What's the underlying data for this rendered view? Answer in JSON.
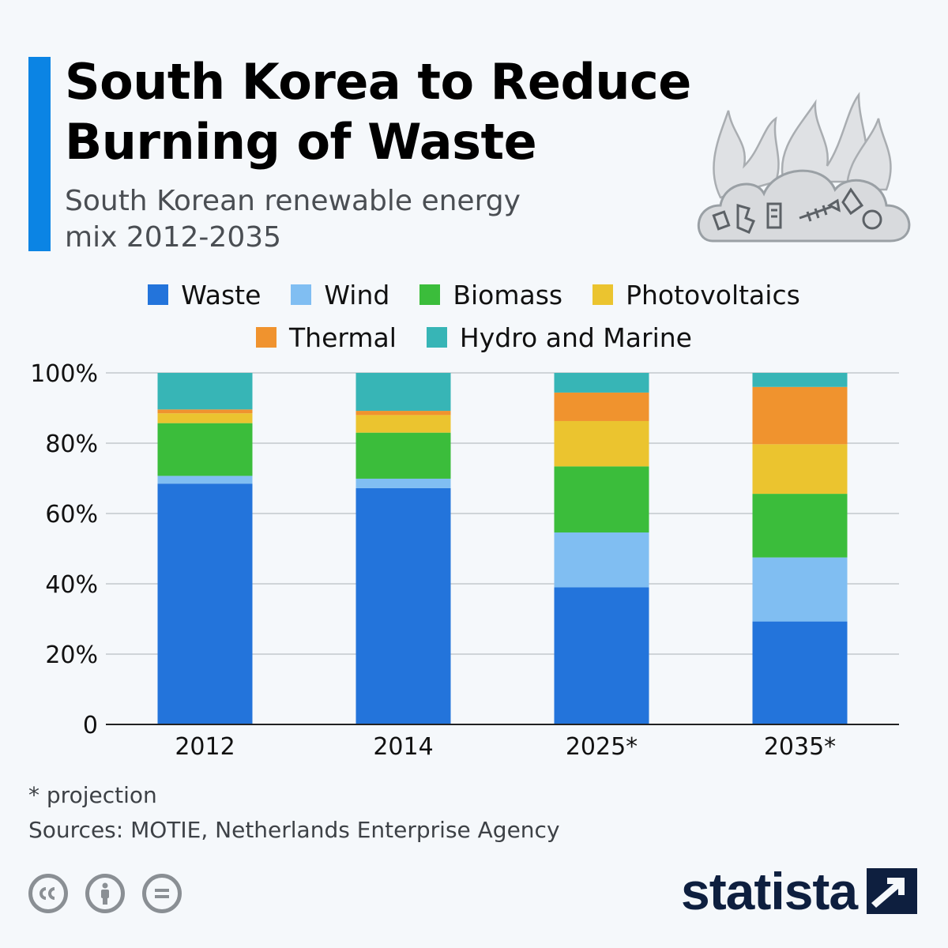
{
  "header": {
    "title": "South Korea to Reduce Burning of Waste",
    "subtitle": "South Korean renewable energy mix 2012-2035"
  },
  "chart_data": {
    "type": "bar",
    "stacked": true,
    "categories": [
      "2012",
      "2014",
      "2025*",
      "2035*"
    ],
    "series": [
      {
        "name": "Waste",
        "color": "#2374db",
        "values": [
          68.5,
          67.2,
          39.0,
          29.3
        ]
      },
      {
        "name": "Wind",
        "color": "#80bef2",
        "values": [
          2.2,
          2.7,
          15.6,
          18.2
        ]
      },
      {
        "name": "Biomass",
        "color": "#3bbd3b",
        "values": [
          15.0,
          13.1,
          18.8,
          18.1
        ]
      },
      {
        "name": "Photovoltaics",
        "color": "#ebc42f",
        "values": [
          2.8,
          5.0,
          12.9,
          14.1
        ]
      },
      {
        "name": "Thermal",
        "color": "#f0932e",
        "values": [
          1.1,
          1.2,
          8.1,
          16.3
        ]
      },
      {
        "name": "Hydro and Marine",
        "color": "#37b5b6",
        "values": [
          10.4,
          10.8,
          5.6,
          4.0
        ]
      }
    ],
    "y_ticks": [
      "0",
      "20%",
      "40%",
      "60%",
      "80%",
      "100%"
    ],
    "ylim": [
      0,
      100
    ],
    "grid": true,
    "legend_position": "top"
  },
  "footnote": "* projection",
  "sources": "Sources: MOTIE, Netherlands Enterprise Agency",
  "brand": {
    "name": "statista"
  },
  "icons": {
    "illustration": "burning-waste-cloud-icon",
    "license": [
      "cc-icon",
      "by-icon",
      "nd-icon"
    ]
  }
}
